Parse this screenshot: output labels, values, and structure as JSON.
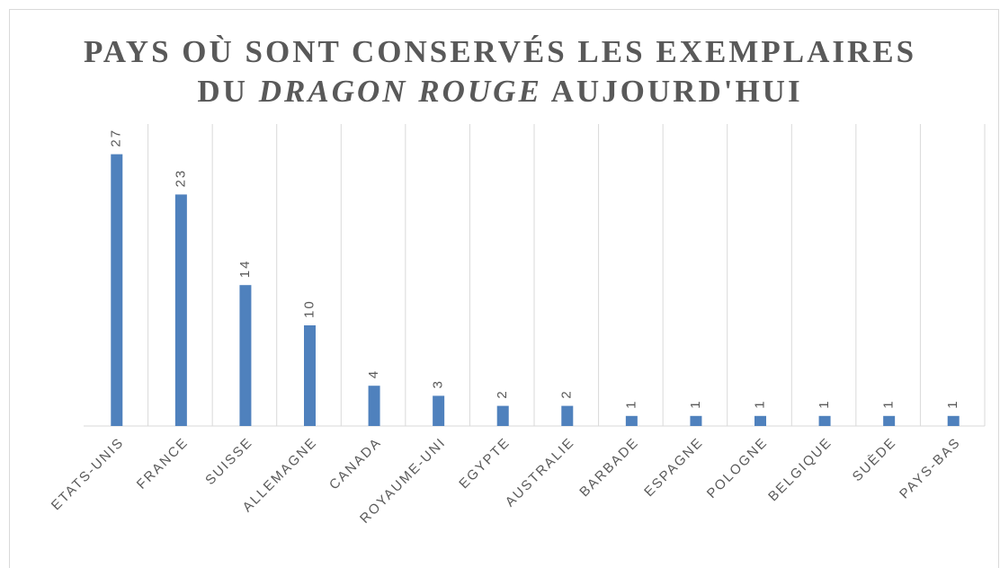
{
  "chart_data": {
    "type": "bar",
    "title": [
      "PAYS OÙ SONT CONSERVÉS LES EXEMPLAIRES",
      "DU",
      "DRAGON ROUGE",
      "AUJOURD'HUI"
    ],
    "categories": [
      "ETATS-UNIS",
      "FRANCE",
      "SUISSE",
      "ALLEMAGNE",
      "CANADA",
      "ROYAUME-UNI",
      "EGYPTE",
      "AUSTRALIE",
      "BARBADE",
      "ESPAGNE",
      "POLOGNE",
      "BELGIQUE",
      "SUÈDE",
      "PAYS-BAS"
    ],
    "values": [
      27,
      23,
      14,
      10,
      4,
      3,
      2,
      2,
      1,
      1,
      1,
      1,
      1,
      1
    ],
    "color": "#4f81bd",
    "ylim": [
      0,
      30
    ],
    "grid": true
  }
}
